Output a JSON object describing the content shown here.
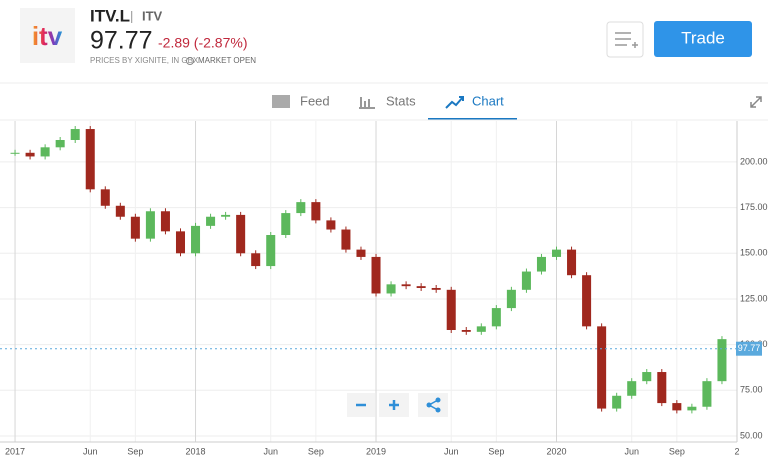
{
  "header": {
    "logo": "itv",
    "symbol": "ITV.L",
    "separator": "|",
    "name": "ITV",
    "price": "97.77",
    "change": "-2.89 (-2.87%)",
    "source": "PRICES BY XIGNITE, IN GBX",
    "status": "MARKET OPEN",
    "trade_button": "Trade"
  },
  "tabs": [
    "Feed",
    "Stats",
    "Chart"
  ],
  "chart_data": {
    "type": "candlestick",
    "up_color": "#5cb85c",
    "down_color": "#a0281e",
    "x": [
      "2017-01",
      "2017-02",
      "2017-03",
      "2017-04",
      "2017-05",
      "2017-06",
      "2017-07",
      "2017-08",
      "2017-09",
      "2017-10",
      "2017-11",
      "2017-12",
      "2018-01",
      "2018-02",
      "2018-03",
      "2018-04",
      "2018-05",
      "2018-06",
      "2018-07",
      "2018-08",
      "2018-09",
      "2018-10",
      "2018-11",
      "2018-12",
      "2019-01",
      "2019-02",
      "2019-03",
      "2019-04",
      "2019-05",
      "2019-06",
      "2019-07",
      "2019-08",
      "2019-09",
      "2019-10",
      "2019-11",
      "2019-12",
      "2020-01",
      "2020-02",
      "2020-03",
      "2020-04",
      "2020-05",
      "2020-06",
      "2020-07",
      "2020-08",
      "2020-09",
      "2020-10",
      "2020-11",
      "2020-12"
    ],
    "series": [
      {
        "name": "ITV.L",
        "values": [
          205,
          203,
          208,
          212,
          218,
          185,
          176,
          170,
          158,
          173,
          162,
          150,
          165,
          170,
          171,
          150,
          143,
          160,
          172,
          178,
          168,
          163,
          152,
          148,
          128,
          133,
          132,
          131,
          130,
          108,
          107,
          110,
          120,
          130,
          140,
          148,
          152,
          138,
          110,
          65,
          72,
          80,
          85,
          68,
          64,
          66,
          80,
          103
        ]
      }
    ],
    "xlim": [
      "2016-12",
      "2021-01"
    ],
    "xticks": [
      {
        "value": "2017-01",
        "label": "2017"
      },
      {
        "value": "2017-06",
        "label": "Jun"
      },
      {
        "value": "2017-09",
        "label": "Sep"
      },
      {
        "value": "2018-01",
        "label": "2018"
      },
      {
        "value": "2018-06",
        "label": "Jun"
      },
      {
        "value": "2018-09",
        "label": "Sep"
      },
      {
        "value": "2019-01",
        "label": "2019"
      },
      {
        "value": "2019-06",
        "label": "Jun"
      },
      {
        "value": "2019-09",
        "label": "Sep"
      },
      {
        "value": "2020-01",
        "label": "2020"
      },
      {
        "value": "2020-06",
        "label": "Jun"
      },
      {
        "value": "2020-09",
        "label": "Sep"
      },
      {
        "value": "2021-01",
        "label": "2"
      }
    ],
    "ylim": [
      46.7,
      222.4
    ],
    "yticks": [
      {
        "value": 50,
        "label": "50.00"
      },
      {
        "value": 75,
        "label": "75.00"
      },
      {
        "value": 100,
        "label": "100.00"
      },
      {
        "value": 125,
        "label": "125.00"
      },
      {
        "value": 150,
        "label": "150.00"
      },
      {
        "value": 175,
        "label": "175.00"
      },
      {
        "value": 200,
        "label": "200.00"
      }
    ],
    "last_price": 97.77,
    "grid": true
  }
}
